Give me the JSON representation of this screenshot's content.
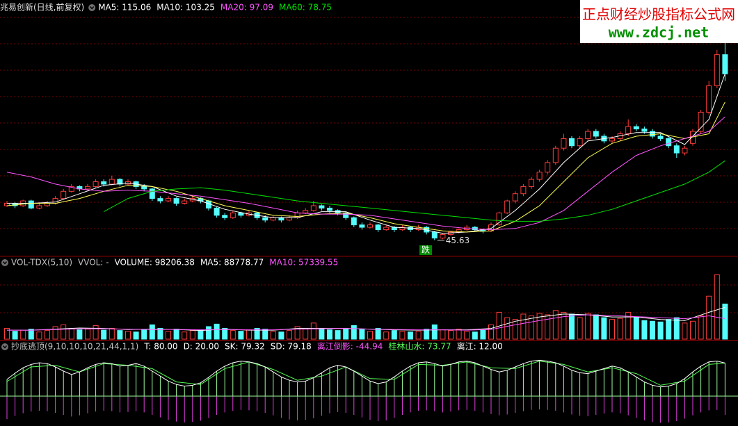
{
  "chart_data": [
    {
      "type": "candlestick",
      "title": "兆易创新(日线,前复权)",
      "legend": [
        {
          "text": "MA5: 115.06",
          "color": "#ffffff"
        },
        {
          "text": "MA10: 103.25",
          "color": "#ffffff"
        },
        {
          "text": "MA20: 97.09",
          "color": "#ff54ff"
        },
        {
          "text": "MA60: 78.75",
          "color": "#00e000"
        }
      ],
      "up_color": "#ff3c3c",
      "down_color": "#54fcfc",
      "ylim": [
        40,
        140
      ],
      "ohlc": [
        [
          60,
          62,
          59.5,
          61
        ],
        [
          61,
          61.5,
          59,
          60
        ],
        [
          60,
          62.5,
          59.5,
          62
        ],
        [
          62,
          62.5,
          58.5,
          59
        ],
        [
          59,
          61,
          58.5,
          60
        ],
        [
          60,
          62,
          59.5,
          61
        ],
        [
          61,
          64,
          60.5,
          63
        ],
        [
          63,
          67,
          62.5,
          66
        ],
        [
          66,
          69,
          65.5,
          68
        ],
        [
          68,
          68.5,
          66,
          67
        ],
        [
          67,
          69,
          66.5,
          68
        ],
        [
          68,
          71,
          67.5,
          70
        ],
        [
          70,
          71,
          68,
          69
        ],
        [
          69,
          72.5,
          68.5,
          71
        ],
        [
          71,
          71.5,
          68,
          69
        ],
        [
          69,
          71,
          68.5,
          70
        ],
        [
          70,
          70.5,
          67,
          68
        ],
        [
          68,
          69,
          66,
          67
        ],
        [
          67,
          67.5,
          62,
          63
        ],
        [
          63,
          64,
          61,
          62
        ],
        [
          62,
          64,
          61.5,
          63
        ],
        [
          63,
          63.5,
          60,
          61
        ],
        [
          61,
          63,
          60.5,
          62
        ],
        [
          62,
          64,
          61.5,
          63
        ],
        [
          63,
          63.5,
          61,
          62
        ],
        [
          62,
          62.5,
          58,
          59
        ],
        [
          59,
          59.5,
          55,
          56
        ],
        [
          56,
          57,
          54,
          55
        ],
        [
          55,
          58,
          54.5,
          57
        ],
        [
          57,
          57.5,
          55,
          56
        ],
        [
          56,
          58,
          55.5,
          57
        ],
        [
          57,
          57.5,
          54,
          55
        ],
        [
          55,
          56,
          53,
          54
        ],
        [
          54,
          56,
          53.5,
          55
        ],
        [
          55,
          55.5,
          53,
          54
        ],
        [
          54,
          56,
          53.5,
          55
        ],
        [
          55,
          58,
          54.5,
          57
        ],
        [
          57,
          59,
          56.5,
          58
        ],
        [
          58,
          62,
          57.5,
          60
        ],
        [
          60,
          60.5,
          58,
          59
        ],
        [
          59,
          60,
          57,
          58
        ],
        [
          58,
          58.5,
          56,
          57
        ],
        [
          57,
          57.5,
          54,
          55
        ],
        [
          55,
          55.5,
          51,
          52
        ],
        [
          52,
          53,
          50,
          51
        ],
        [
          51,
          53,
          50.5,
          52
        ],
        [
          52,
          52.5,
          49,
          50
        ],
        [
          50,
          52,
          49.5,
          51
        ],
        [
          51,
          51.5,
          49,
          50
        ],
        [
          50,
          52,
          49.5,
          51
        ],
        [
          51,
          51.5,
          49,
          50
        ],
        [
          50,
          52,
          49.5,
          51
        ],
        [
          51,
          51.5,
          48,
          49
        ],
        [
          49,
          49.5,
          45.63,
          46.5
        ],
        [
          46.5,
          48.5,
          46,
          48
        ],
        [
          48,
          49.5,
          47.5,
          49
        ],
        [
          49,
          50.5,
          48.5,
          50
        ],
        [
          50,
          52,
          49.5,
          51
        ],
        [
          51,
          51.5,
          49.5,
          50
        ],
        [
          50,
          50.5,
          48.5,
          49.5
        ],
        [
          49.5,
          53,
          49,
          52
        ],
        [
          52,
          57.5,
          51.5,
          57
        ],
        [
          57,
          62.5,
          56.5,
          62
        ],
        [
          62,
          66,
          61,
          65
        ],
        [
          65,
          69,
          64,
          68
        ],
        [
          68,
          72,
          67,
          71
        ],
        [
          71,
          75,
          70,
          74
        ],
        [
          74,
          79,
          73,
          78
        ],
        [
          78,
          85,
          77,
          84
        ],
        [
          84,
          90,
          83,
          88
        ],
        [
          88,
          89,
          84,
          85
        ],
        [
          85,
          89,
          84,
          88
        ],
        [
          88,
          92,
          87,
          91
        ],
        [
          91,
          92,
          88,
          89
        ],
        [
          89,
          90,
          86,
          87
        ],
        [
          87,
          89,
          86,
          88
        ],
        [
          88,
          91,
          87,
          90
        ],
        [
          90,
          96,
          89,
          93
        ],
        [
          93,
          94,
          91,
          92
        ],
        [
          92,
          93,
          90,
          91
        ],
        [
          91,
          92,
          88,
          89
        ],
        [
          89,
          90,
          87,
          88
        ],
        [
          88,
          88.5,
          84,
          85
        ],
        [
          85,
          86,
          80,
          82
        ],
        [
          82,
          85,
          81,
          84
        ],
        [
          86,
          92,
          85,
          91
        ],
        [
          91,
          100,
          90,
          99
        ],
        [
          99,
          112,
          98,
          110
        ],
        [
          110,
          125,
          109,
          123
        ],
        [
          123,
          128,
          112,
          115
        ]
      ],
      "line_x": [
        0,
        3,
        6,
        9,
        12,
        15,
        18,
        21,
        24,
        27,
        30,
        33,
        36,
        39,
        42,
        45,
        48,
        51,
        54,
        57,
        60,
        63,
        66,
        69,
        72,
        75,
        78,
        81,
        84,
        87,
        89
      ],
      "series": [
        {
          "color": "#ffffff",
          "values": [
            61,
            61,
            61.5,
            65,
            68.5,
            69.5,
            68,
            64,
            62,
            58.5,
            56.5,
            55,
            55,
            57.5,
            57.5,
            54,
            51,
            50.5,
            48.5,
            49,
            50.5,
            58,
            67,
            78,
            87,
            88.5,
            90.5,
            90.5,
            85.5,
            96,
            115.06
          ]
        },
        {
          "color": "#ffff54",
          "values": [
            60,
            61,
            61,
            63,
            66,
            68.5,
            68,
            66,
            63,
            60,
            58,
            56,
            55.5,
            56.5,
            57,
            55,
            52.5,
            51,
            49.5,
            49,
            49.5,
            53.5,
            60,
            70,
            80,
            86,
            89,
            90,
            88,
            90,
            103.25
          ]
        },
        {
          "color": "#ff54ff",
          "values": [
            74,
            72,
            69,
            67,
            66,
            66.5,
            66,
            65,
            64,
            62.5,
            61,
            59,
            57,
            56.5,
            56.5,
            56,
            54.5,
            53,
            51.5,
            50.5,
            50,
            50.5,
            53,
            58,
            66,
            74,
            81,
            85,
            88,
            91,
            97.09
          ]
        },
        {
          "color": "#00e000",
          "values": [
            null,
            null,
            null,
            null,
            57.5,
            63,
            66,
            67,
            67.5,
            66.5,
            65,
            63.5,
            62,
            61,
            60,
            59,
            58,
            57,
            56,
            55,
            54,
            53.5,
            53.5,
            54.5,
            56,
            58.5,
            62,
            65.5,
            69,
            74,
            78.75
          ]
        }
      ],
      "low_label": {
        "value": 45.63,
        "label": "45.63"
      },
      "signal": "跌"
    },
    {
      "type": "volume",
      "legend": [
        {
          "text": "VOL-TDX(5,10)",
          "color": "#c0c0c0"
        },
        {
          "text": "VVOL: -",
          "color": "#c0c0c0"
        },
        {
          "text": "VOLUME: 98206.38",
          "color": "#ffffff"
        },
        {
          "text": "MA5: 88778.77",
          "color": "#ffffff"
        },
        {
          "text": "MA10: 57339.55",
          "color": "#ff54ff"
        }
      ],
      "ylim": [
        0,
        200000
      ],
      "values": [
        30000,
        22000,
        25000,
        28000,
        20000,
        24000,
        35000,
        40000,
        30000,
        26000,
        28000,
        38000,
        25000,
        30000,
        24000,
        22000,
        20000,
        26000,
        40000,
        30000,
        22000,
        28000,
        20000,
        24000,
        26000,
        35000,
        42000,
        30000,
        24000,
        22000,
        26000,
        30000,
        28000,
        22000,
        20000,
        24000,
        35000,
        28000,
        45000,
        30000,
        26000,
        24000,
        30000,
        38000,
        28000,
        22000,
        30000,
        20000,
        24000,
        22000,
        20000,
        22000,
        28000,
        40000,
        26000,
        24000,
        28000,
        22000,
        20000,
        25000,
        40000,
        75000,
        60000,
        55000,
        70000,
        65000,
        72000,
        68000,
        80000,
        75000,
        70000,
        60000,
        72000,
        68000,
        60000,
        55000,
        58000,
        75000,
        60000,
        52000,
        50000,
        48000,
        55000,
        60000,
        45000,
        50000,
        65000,
        120000,
        180000,
        98206.38
      ],
      "line_x": [
        0,
        3,
        6,
        9,
        12,
        15,
        18,
        21,
        24,
        27,
        30,
        33,
        36,
        39,
        42,
        45,
        48,
        51,
        54,
        57,
        60,
        63,
        66,
        69,
        72,
        75,
        78,
        81,
        84,
        87,
        89
      ],
      "series": [
        {
          "color": "#ffffff",
          "values": [
            25000,
            25000,
            28000,
            31000,
            30000,
            27000,
            28000,
            27000,
            24000,
            28000,
            25000,
            25000,
            30000,
            30000,
            30000,
            28000,
            26000,
            25000,
            26000,
            26000,
            30000,
            50000,
            62000,
            70000,
            68000,
            62000,
            62000,
            55000,
            52000,
            75000,
            88778.77
          ]
        },
        {
          "color": "#ff54ff",
          "values": [
            25000,
            25000,
            27000,
            29000,
            29000,
            28000,
            27000,
            27000,
            26000,
            27000,
            26000,
            26000,
            28000,
            29000,
            30000,
            28000,
            27000,
            26000,
            26000,
            25000,
            27000,
            40000,
            52000,
            63000,
            68000,
            66000,
            63000,
            60000,
            57000,
            65000,
            57339.55
          ]
        }
      ]
    },
    {
      "type": "oscillator",
      "legend": [
        {
          "text": "抄底逃顶(9,10,10,10,21,44,1,1)",
          "color": "#c0c0c0"
        },
        {
          "text": "T: 80.00",
          "color": "#ffffff"
        },
        {
          "text": "D: 20.00",
          "color": "#ffffff"
        },
        {
          "text": "SK: 79.32",
          "color": "#ffffff"
        },
        {
          "text": "SD: 79.18",
          "color": "#ffffff"
        },
        {
          "text": "离江倒影: -44.94",
          "color": "#ff54ff"
        },
        {
          "text": "桂林山水: 73.77",
          "color": "#54ff54"
        },
        {
          "text": "离江: 12.00",
          "color": "#ffffff"
        }
      ],
      "ylim": [
        -70,
        100
      ],
      "sk": {
        "color": "#ffffff",
        "bar_color": "#9cff9c",
        "values": [
          40,
          55,
          68,
          76,
          80,
          78,
          70,
          60,
          52,
          58,
          68,
          76,
          80,
          78,
          72,
          74,
          78,
          72,
          60,
          48,
          36,
          28,
          24,
          26,
          32,
          45,
          60,
          72,
          80,
          84,
          82,
          78,
          70,
          58,
          46,
          38,
          34,
          36,
          44,
          56,
          68,
          74,
          70,
          60,
          48,
          36,
          30,
          34,
          46,
          60,
          72,
          80,
          82,
          78,
          72,
          76,
          82,
          84,
          80,
          72,
          64,
          58,
          62,
          70,
          78,
          84,
          86,
          84,
          80,
          72,
          62,
          56,
          54,
          60,
          66,
          72,
          68,
          58,
          46,
          34,
          26,
          22,
          24,
          30,
          42,
          58,
          72,
          82,
          84,
          79.32
        ]
      },
      "reflection": {
        "color": "#e040e0",
        "values": [
          -55,
          -47.5,
          -41,
          -37,
          -35,
          -36,
          -40,
          -45,
          -49,
          -46,
          -41,
          -37,
          -35,
          -36,
          -39,
          -38,
          -36,
          -39,
          -45,
          -51,
          -57,
          -61,
          -63,
          -62,
          -59,
          -52.5,
          -45,
          -39,
          -35,
          -33,
          -34,
          -36,
          -40,
          -46,
          -52,
          -56,
          -58,
          -57,
          -53,
          -47,
          -41,
          -38,
          -40,
          -45,
          -51,
          -57,
          -60,
          -58,
          -52,
          -45,
          -39,
          -35,
          -34,
          -36,
          -39,
          -37,
          -34,
          -33,
          -35,
          -39,
          -43,
          -46,
          -44,
          -40,
          -36,
          -33,
          -32,
          -33,
          -35,
          -39,
          -44,
          -47,
          -48,
          -45,
          -42,
          -39,
          -41,
          -46,
          -52,
          -58,
          -62,
          -64,
          -63,
          -60,
          -54,
          -46,
          -39,
          -34,
          -33,
          -44.94
        ]
      },
      "line_x": [
        0,
        3,
        6,
        9,
        12,
        15,
        18,
        21,
        24,
        27,
        30,
        33,
        36,
        39,
        42,
        45,
        48,
        51,
        54,
        57,
        60,
        63,
        66,
        69,
        72,
        75,
        78,
        81,
        84,
        87,
        89
      ],
      "sd": {
        "color": "#54ff54",
        "values": [
          35,
          70,
          74,
          58,
          78,
          74,
          66,
          34,
          28,
          66,
          82,
          64,
          38,
          48,
          70,
          42,
          40,
          76,
          74,
          82,
          68,
          66,
          84,
          76,
          58,
          68,
          54,
          26,
          36,
          76,
          79.18
        ]
      }
    }
  ],
  "watermark": {
    "title": "正点财经炒股指标公式网",
    "url": "www.zdcj.net"
  }
}
